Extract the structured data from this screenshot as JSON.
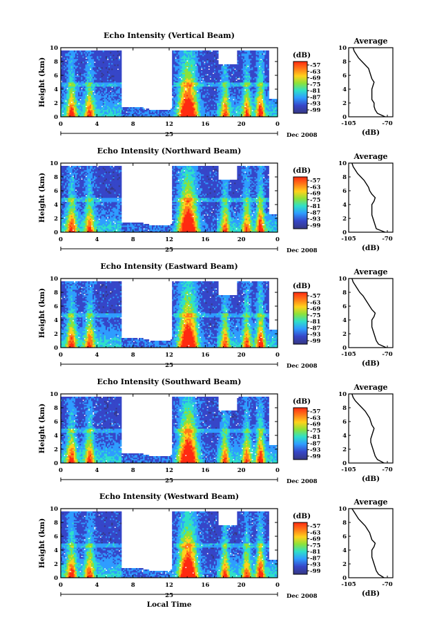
{
  "chart_data": [
    {
      "type": "heatmap",
      "title": "Echo Intensity (Vertical Beam)",
      "ylabel": "Height (km)",
      "ylim": [
        0,
        10
      ],
      "yticks": [
        "0",
        "2",
        "4",
        "6",
        "8",
        "10"
      ],
      "xlim": [
        0,
        24
      ],
      "xticks": [
        "0",
        "4",
        "8",
        "12",
        "16",
        "20",
        "0"
      ],
      "date_day": "25",
      "date_month": "Dec 2008",
      "colorbar_unit": "(dB)",
      "colorbar_ticks": [
        "-57",
        "-63",
        "-69",
        "-75",
        "-81",
        "-87",
        "-93",
        "-99"
      ],
      "average_title": "Average",
      "average_xlabel": "(dB)",
      "average_xticks": [
        "-105",
        "-70"
      ],
      "average_xlim": [
        -105,
        -65
      ],
      "average_profile": [
        -72,
        -79,
        -81,
        -82,
        -82,
        -84,
        -84,
        -84,
        -84,
        -83,
        -82,
        -84,
        -85,
        -86,
        -87,
        -90,
        -93,
        -96,
        -98,
        -100,
        -101
      ],
      "heights": [
        0,
        0.5,
        1,
        1.5,
        2,
        2.5,
        3,
        3.5,
        4,
        4.5,
        5,
        5.5,
        6,
        6.5,
        7,
        7.5,
        8,
        8.5,
        9,
        9.5,
        10
      ]
    },
    {
      "type": "heatmap",
      "title": "Echo Intensity (Northward Beam)",
      "ylabel": "Height (km)",
      "ylim": [
        0,
        10
      ],
      "yticks": [
        "0",
        "2",
        "4",
        "6",
        "8",
        "10"
      ],
      "xlim": [
        0,
        24
      ],
      "xticks": [
        "0",
        "4",
        "8",
        "12",
        "16",
        "20",
        "0"
      ],
      "date_day": "25",
      "date_month": "Dec 2008",
      "colorbar_unit": "(dB)",
      "colorbar_ticks": [
        "-57",
        "-63",
        "-69",
        "-75",
        "-81",
        "-87",
        "-93",
        "-99"
      ],
      "average_title": "Average",
      "average_xlabel": "(dB)",
      "average_xticks": [
        "-105",
        "-70"
      ],
      "average_xlim": [
        -105,
        -65
      ],
      "average_profile": [
        -72,
        -80,
        -81,
        -82,
        -83,
        -84,
        -84,
        -84,
        -84,
        -82,
        -81,
        -84,
        -86,
        -87,
        -89,
        -91,
        -94,
        -97,
        -99,
        -101,
        -102
      ],
      "heights": [
        0,
        0.5,
        1,
        1.5,
        2,
        2.5,
        3,
        3.5,
        4,
        4.5,
        5,
        5.5,
        6,
        6.5,
        7,
        7.5,
        8,
        8.5,
        9,
        9.5,
        10
      ]
    },
    {
      "type": "heatmap",
      "title": "Echo Intensity (Eastward Beam)",
      "ylabel": "Height (km)",
      "ylim": [
        0,
        10
      ],
      "yticks": [
        "0",
        "2",
        "4",
        "6",
        "8",
        "10"
      ],
      "xlim": [
        0,
        24
      ],
      "xticks": [
        "0",
        "4",
        "8",
        "12",
        "16",
        "20",
        "0"
      ],
      "date_day": "25",
      "date_month": "Dec 2008",
      "colorbar_unit": "(dB)",
      "colorbar_ticks": [
        "-57",
        "-63",
        "-69",
        "-75",
        "-81",
        "-87",
        "-93",
        "-99"
      ],
      "average_title": "Average",
      "average_xlabel": "(dB)",
      "average_xticks": [
        "-105",
        "-70"
      ],
      "average_xlim": [
        -105,
        -65
      ],
      "average_profile": [
        -71,
        -78,
        -80,
        -81,
        -82,
        -83,
        -84,
        -84,
        -84,
        -82,
        -81,
        -84,
        -86,
        -88,
        -90,
        -92,
        -95,
        -97,
        -99,
        -101,
        -102
      ],
      "heights": [
        0,
        0.5,
        1,
        1.5,
        2,
        2.5,
        3,
        3.5,
        4,
        4.5,
        5,
        5.5,
        6,
        6.5,
        7,
        7.5,
        8,
        8.5,
        9,
        9.5,
        10
      ]
    },
    {
      "type": "heatmap",
      "title": "Echo Intensity (Southward Beam)",
      "ylabel": "Height (km)",
      "ylim": [
        0,
        10
      ],
      "yticks": [
        "0",
        "2",
        "4",
        "6",
        "8",
        "10"
      ],
      "xlim": [
        0,
        24
      ],
      "xticks": [
        "0",
        "4",
        "8",
        "12",
        "16",
        "20",
        "0"
      ],
      "date_day": "25",
      "date_month": "Dec 2008",
      "colorbar_unit": "(dB)",
      "colorbar_ticks": [
        "-57",
        "-63",
        "-69",
        "-75",
        "-81",
        "-87",
        "-93",
        "-99"
      ],
      "average_title": "Average",
      "average_xlabel": "(dB)",
      "average_xticks": [
        "-105",
        "-70"
      ],
      "average_xlim": [
        -105,
        -65
      ],
      "average_profile": [
        -73,
        -79,
        -81,
        -82,
        -83,
        -84,
        -85,
        -85,
        -84,
        -83,
        -82,
        -84,
        -85,
        -86,
        -88,
        -90,
        -93,
        -96,
        -99,
        -101,
        -102
      ],
      "heights": [
        0,
        0.5,
        1,
        1.5,
        2,
        2.5,
        3,
        3.5,
        4,
        4.5,
        5,
        5.5,
        6,
        6.5,
        7,
        7.5,
        8,
        8.5,
        9,
        9.5,
        10
      ]
    },
    {
      "type": "heatmap",
      "title": "Echo Intensity (Westward Beam)",
      "ylabel": "Height (km)",
      "xlabel": "Local Time",
      "ylim": [
        0,
        10
      ],
      "yticks": [
        "0",
        "2",
        "4",
        "6",
        "8",
        "10"
      ],
      "xlim": [
        0,
        24
      ],
      "xticks": [
        "0",
        "4",
        "8",
        "12",
        "16",
        "20",
        "0"
      ],
      "date_day": "25",
      "date_month": "Dec 2008",
      "colorbar_unit": "(dB)",
      "colorbar_ticks": [
        "-57",
        "-63",
        "-69",
        "-75",
        "-81",
        "-87",
        "-93",
        "-99"
      ],
      "average_title": "Average",
      "average_xlabel": "(dB)",
      "average_xticks": [
        "-105",
        "-70"
      ],
      "average_xlim": [
        -105,
        -65
      ],
      "average_profile": [
        -73,
        -78,
        -80,
        -81,
        -82,
        -83,
        -84,
        -84,
        -84,
        -82,
        -81,
        -84,
        -85,
        -86,
        -88,
        -90,
        -93,
        -96,
        -98,
        -100,
        -102
      ],
      "heights": [
        0,
        0.5,
        1,
        1.5,
        2,
        2.5,
        3,
        3.5,
        4,
        4.5,
        5,
        5.5,
        6,
        6.5,
        7,
        7.5,
        8,
        8.5,
        9,
        9.5,
        10
      ]
    }
  ],
  "colorscale": [
    "#ff2a10",
    "#ff7a18",
    "#ffd21c",
    "#8ce23a",
    "#2fe0c8",
    "#2f9dff",
    "#3646c8",
    "#363883"
  ]
}
